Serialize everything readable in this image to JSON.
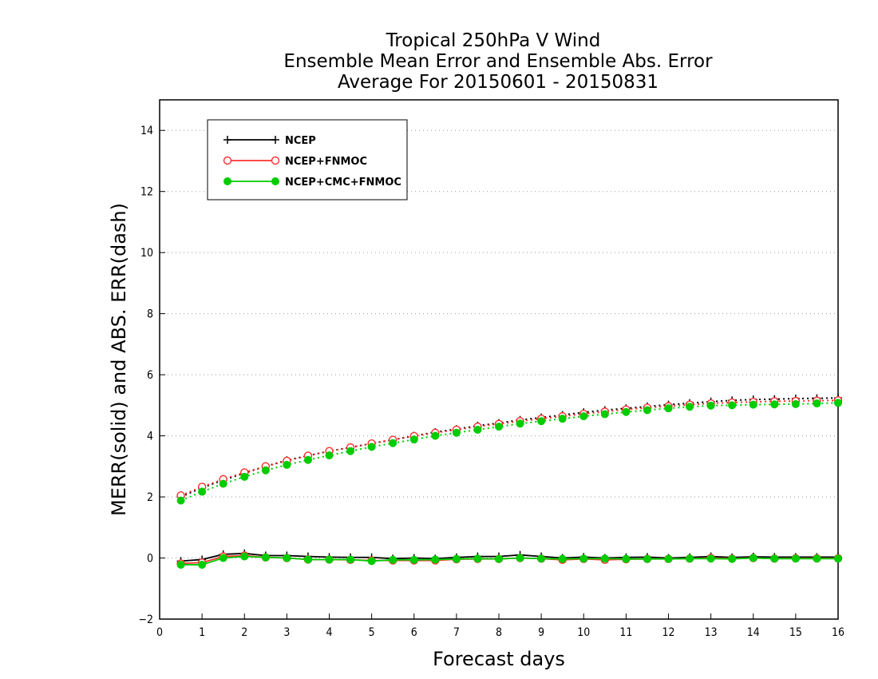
{
  "chart_data": {
    "type": "line",
    "title": [
      "Tropical 250hPa V Wind",
      "Ensemble Mean Error and Ensemble Abs. Error",
      "Average For 20150601 - 20150831"
    ],
    "xlabel": "Forecast days",
    "ylabel": "MERR(solid) and ABS. ERR(dash)",
    "xlim": [
      0,
      16
    ],
    "ylim": [
      -2,
      15
    ],
    "xticks": [
      0,
      1,
      2,
      3,
      4,
      5,
      6,
      7,
      8,
      9,
      10,
      11,
      12,
      13,
      14,
      15,
      16
    ],
    "yticks": [
      -2,
      0,
      2,
      4,
      6,
      8,
      10,
      12,
      14
    ],
    "grid": "horizontal dotted",
    "legend_position": "top-left",
    "x": [
      0.5,
      1.0,
      1.5,
      2.0,
      2.5,
      3.0,
      3.5,
      4.0,
      4.5,
      5.0,
      5.5,
      6.0,
      6.5,
      7.0,
      7.5,
      8.0,
      8.5,
      9.0,
      9.5,
      10.0,
      10.5,
      11.0,
      11.5,
      12.0,
      12.5,
      13.0,
      13.5,
      14.0,
      14.5,
      15.0,
      15.5,
      16.0
    ],
    "series": [
      {
        "name": "NCEP",
        "color": "#000000",
        "marker": "plus",
        "merr": [
          -0.1,
          -0.05,
          0.12,
          0.15,
          0.08,
          0.08,
          0.05,
          0.03,
          0.02,
          0.02,
          -0.02,
          0.0,
          -0.02,
          0.02,
          0.05,
          0.05,
          0.1,
          0.05,
          0.0,
          0.03,
          0.0,
          0.02,
          0.03,
          0.0,
          0.02,
          0.05,
          0.02,
          0.04,
          0.03,
          0.03,
          0.03,
          0.03
        ],
        "abs_err": [
          2.0,
          2.3,
          2.55,
          2.78,
          3.0,
          3.2,
          3.35,
          3.5,
          3.62,
          3.75,
          3.87,
          4.0,
          4.12,
          4.22,
          4.33,
          4.42,
          4.52,
          4.6,
          4.68,
          4.77,
          4.84,
          4.9,
          4.96,
          5.02,
          5.07,
          5.12,
          5.16,
          5.19,
          5.2,
          5.22,
          5.23,
          5.24
        ]
      },
      {
        "name": "NCEP+FNMOC",
        "color": "#ff3030",
        "marker": "open-circle",
        "merr": [
          -0.18,
          -0.15,
          0.05,
          0.08,
          0.02,
          0.0,
          -0.05,
          -0.05,
          -0.06,
          -0.08,
          -0.08,
          -0.08,
          -0.08,
          -0.04,
          -0.03,
          -0.03,
          0.0,
          -0.02,
          -0.06,
          -0.03,
          -0.06,
          -0.04,
          -0.03,
          -0.03,
          -0.02,
          0.0,
          -0.02,
          0.0,
          -0.02,
          -0.01,
          -0.01,
          -0.01
        ],
        "abs_err": [
          2.05,
          2.33,
          2.58,
          2.8,
          3.0,
          3.18,
          3.35,
          3.5,
          3.62,
          3.75,
          3.87,
          3.99,
          4.1,
          4.2,
          4.3,
          4.39,
          4.48,
          4.56,
          4.64,
          4.72,
          4.79,
          4.86,
          4.92,
          4.97,
          5.02,
          5.06,
          5.09,
          5.11,
          5.13,
          5.14,
          5.15,
          5.16
        ]
      },
      {
        "name": "NCEP+CMC+FNMOC",
        "color": "#00cc00",
        "marker": "filled-circle",
        "merr": [
          -0.22,
          -0.22,
          0.0,
          0.05,
          0.02,
          0.0,
          -0.05,
          -0.05,
          -0.05,
          -0.1,
          -0.06,
          -0.06,
          -0.05,
          -0.03,
          -0.02,
          -0.03,
          0.0,
          -0.02,
          -0.03,
          -0.02,
          -0.02,
          -0.03,
          -0.03,
          -0.03,
          -0.02,
          -0.02,
          -0.03,
          0.0,
          -0.02,
          -0.02,
          -0.02,
          -0.02
        ],
        "abs_err": [
          1.88,
          2.17,
          2.43,
          2.66,
          2.87,
          3.05,
          3.21,
          3.36,
          3.5,
          3.64,
          3.76,
          3.88,
          4.0,
          4.1,
          4.2,
          4.3,
          4.4,
          4.48,
          4.56,
          4.64,
          4.71,
          4.78,
          4.84,
          4.9,
          4.95,
          4.99,
          5.0,
          5.02,
          5.03,
          5.04,
          5.06,
          5.08
        ]
      }
    ]
  }
}
